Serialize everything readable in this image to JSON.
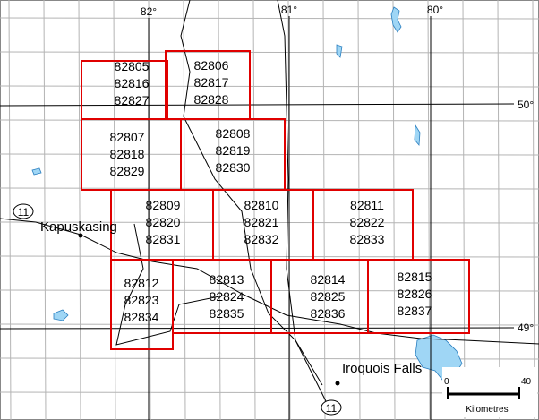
{
  "tiles": [
    {
      "ids": [
        "82805",
        "82816",
        "82827"
      ]
    },
    {
      "ids": [
        "82806",
        "82817",
        "82828"
      ]
    },
    {
      "ids": [
        "82807",
        "82818",
        "82829"
      ]
    },
    {
      "ids": [
        "82808",
        "82819",
        "82830"
      ]
    },
    {
      "ids": [
        "82809",
        "82820",
        "82831"
      ]
    },
    {
      "ids": [
        "82810",
        "82821",
        "82832"
      ]
    },
    {
      "ids": [
        "82811",
        "82822",
        "82833"
      ]
    },
    {
      "ids": [
        "82812",
        "82823",
        "82834"
      ]
    },
    {
      "ids": [
        "82813",
        "82824",
        "82835"
      ]
    },
    {
      "ids": [
        "82814",
        "82825",
        "82836"
      ]
    },
    {
      "ids": [
        "82815",
        "82826",
        "82837"
      ]
    }
  ],
  "longitudes": [
    "82°",
    "81°",
    "80°"
  ],
  "latitudes": [
    "50°",
    "49°"
  ],
  "places": [
    "Kapuskasing",
    "Iroquois Falls"
  ],
  "highway_shields": [
    "11",
    "11"
  ],
  "scale_bar": {
    "start": "0",
    "end": "40",
    "unit": "Kilometres"
  }
}
